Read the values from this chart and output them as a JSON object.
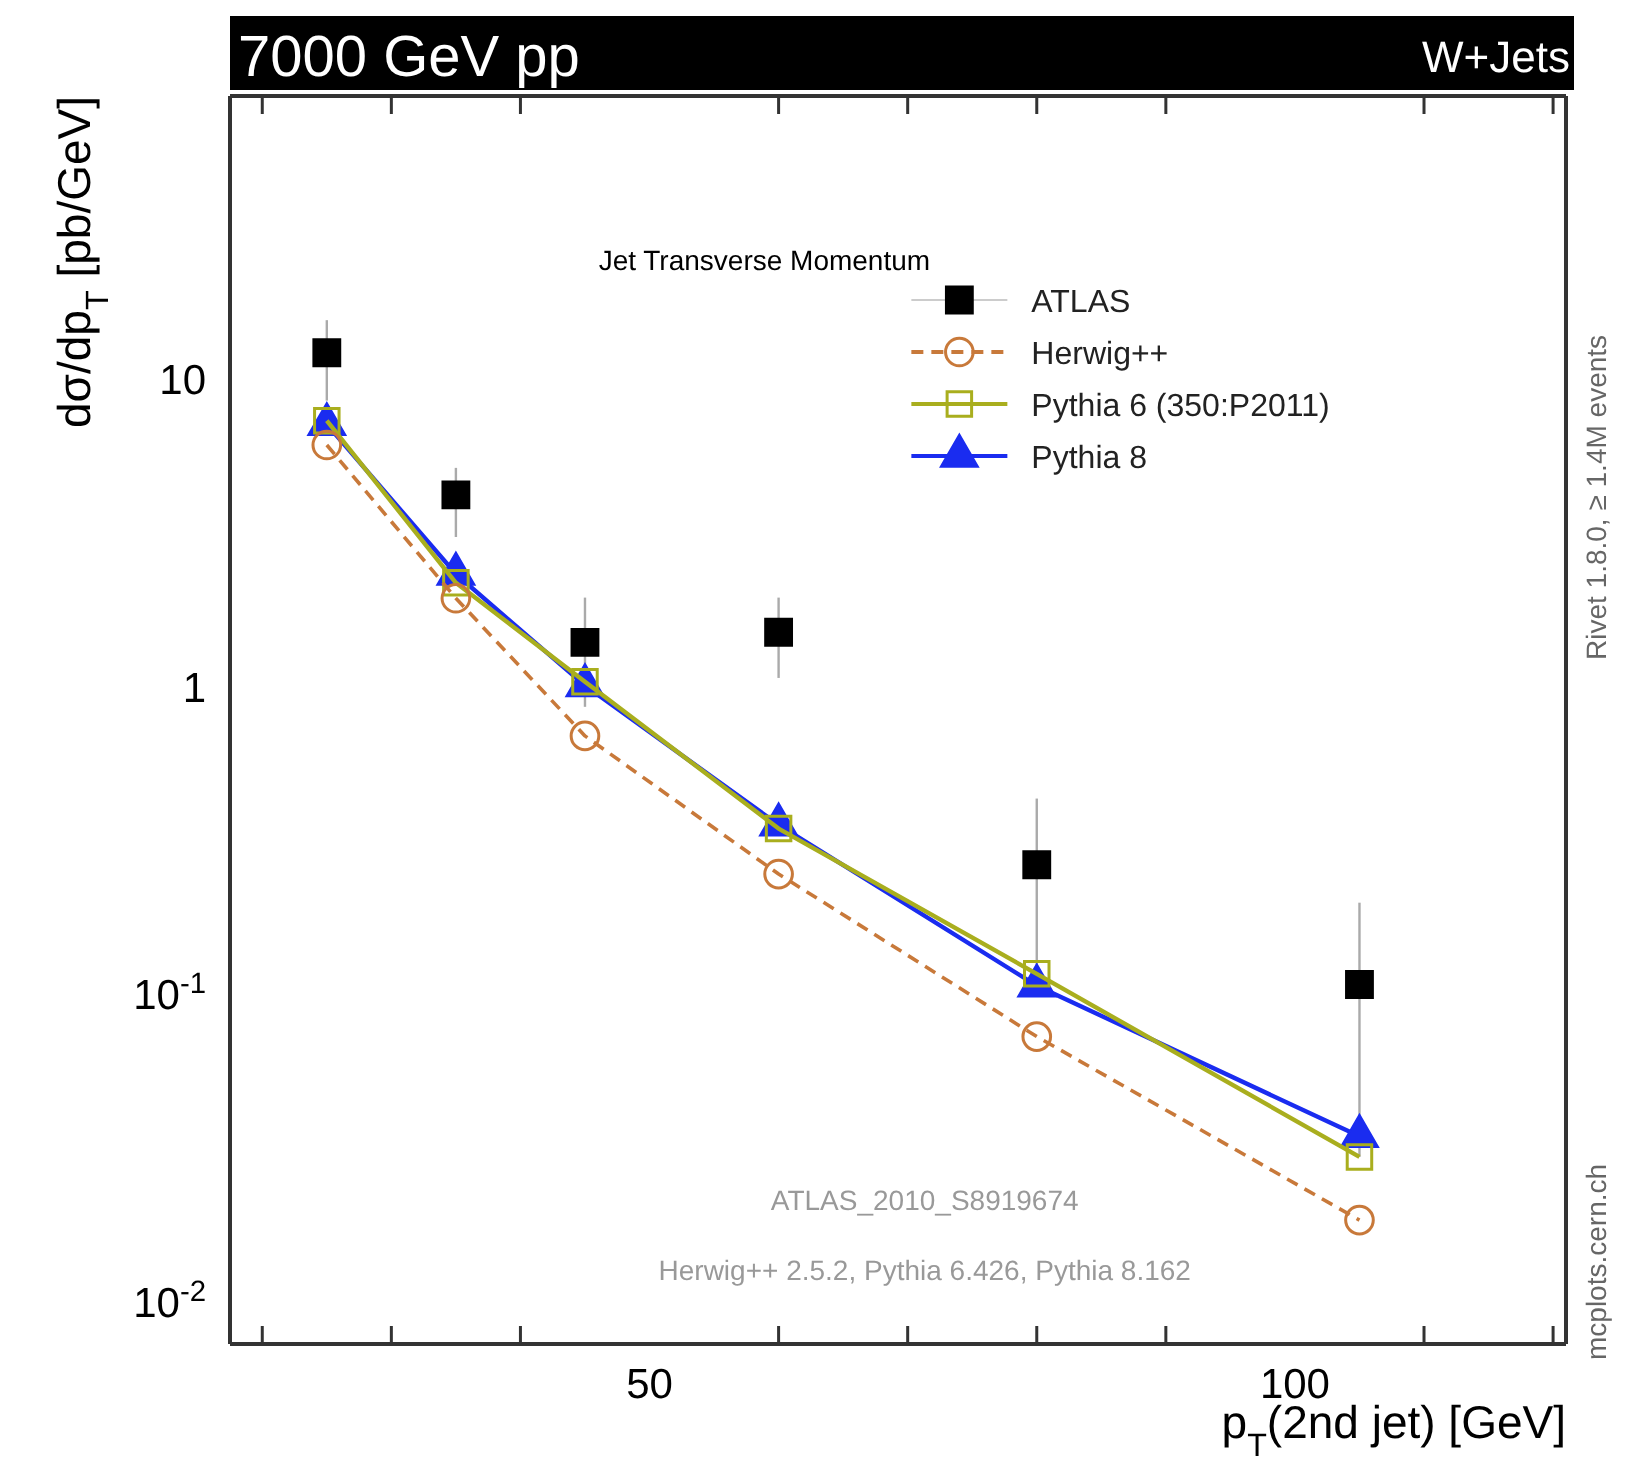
{
  "chart_data": {
    "type": "line",
    "title": "Jet Transverse Momentum",
    "subtitle": "7000 GeV pp",
    "xlabel": "p$_{T}$(2nd jet) [GeV]",
    "ylabel": "dσ/dp$_{T}$ [pb/GeV]",
    "annotations": [
      "W+Jets",
      "ATLAS_2010_S8919674",
      "Herwig++ 2.5.2, Pythia 6.426, Pythia 8.162",
      "Rivet 1.8.0, ≥ 1.4M events",
      "mcplots.cern.ch"
    ],
    "x": [
      25,
      35,
      45,
      60,
      80,
      105
    ],
    "series": [
      {
        "name": "ATLAS",
        "type": "scatter",
        "color": "#000000",
        "marker": "square",
        "values": [
          12.3,
          4.25,
          1.41,
          1.52,
          0.267,
          0.109
        ],
        "errors": [
          [
            8.6,
            15.7
          ],
          [
            3.1,
            5.2
          ],
          [
            0.87,
            1.97
          ],
          [
            1.08,
            1.97
          ],
          [
            0.115,
            0.438
          ],
          [
            0.03,
            0.201
          ]
        ]
      },
      {
        "name": "Herwig++",
        "type": "line",
        "color": "#c8793a",
        "marker": "circle",
        "line_style": "dashed",
        "values": [
          6.17,
          1.96,
          0.7,
          0.249,
          0.0738,
          0.0187
        ]
      },
      {
        "name": "Pythia 6 (350:P2011)",
        "type": "line",
        "color": "#a9ae1e",
        "marker": "square",
        "line_style": "solid",
        "values": [
          7.4,
          2.2,
          1.05,
          0.35,
          0.118,
          0.03
        ]
      },
      {
        "name": "Pythia 8",
        "type": "line",
        "color": "#1a2cf0",
        "marker": "triangle",
        "line_style": "solid",
        "values": [
          7.2,
          2.35,
          1.02,
          0.36,
          0.108,
          0.035
        ]
      }
    ],
    "log": true,
    "legend": "top right",
    "grid": false,
    "xlim": [
      17.5,
      121
    ],
    "ylim": [
      0.0074,
      84
    ],
    "xticks": [
      {
        "value": 20,
        "label": null
      },
      {
        "value": 30,
        "label": null
      },
      {
        "value": 40,
        "label": null
      },
      50,
      {
        "value": 60,
        "label": null
      },
      {
        "value": 70,
        "label": null
      },
      {
        "value": 80,
        "label": null
      },
      {
        "value": 90,
        "label": null
      },
      100,
      {
        "value": 110,
        "label": null
      },
      {
        "value": 120,
        "label": null
      }
    ],
    "yticks": [
      {
        "value": 0.01,
        "label": "10$^{-2}$"
      },
      {
        "value": 0.1,
        "label": "10$^{-1}$"
      },
      1,
      10
    ]
  }
}
